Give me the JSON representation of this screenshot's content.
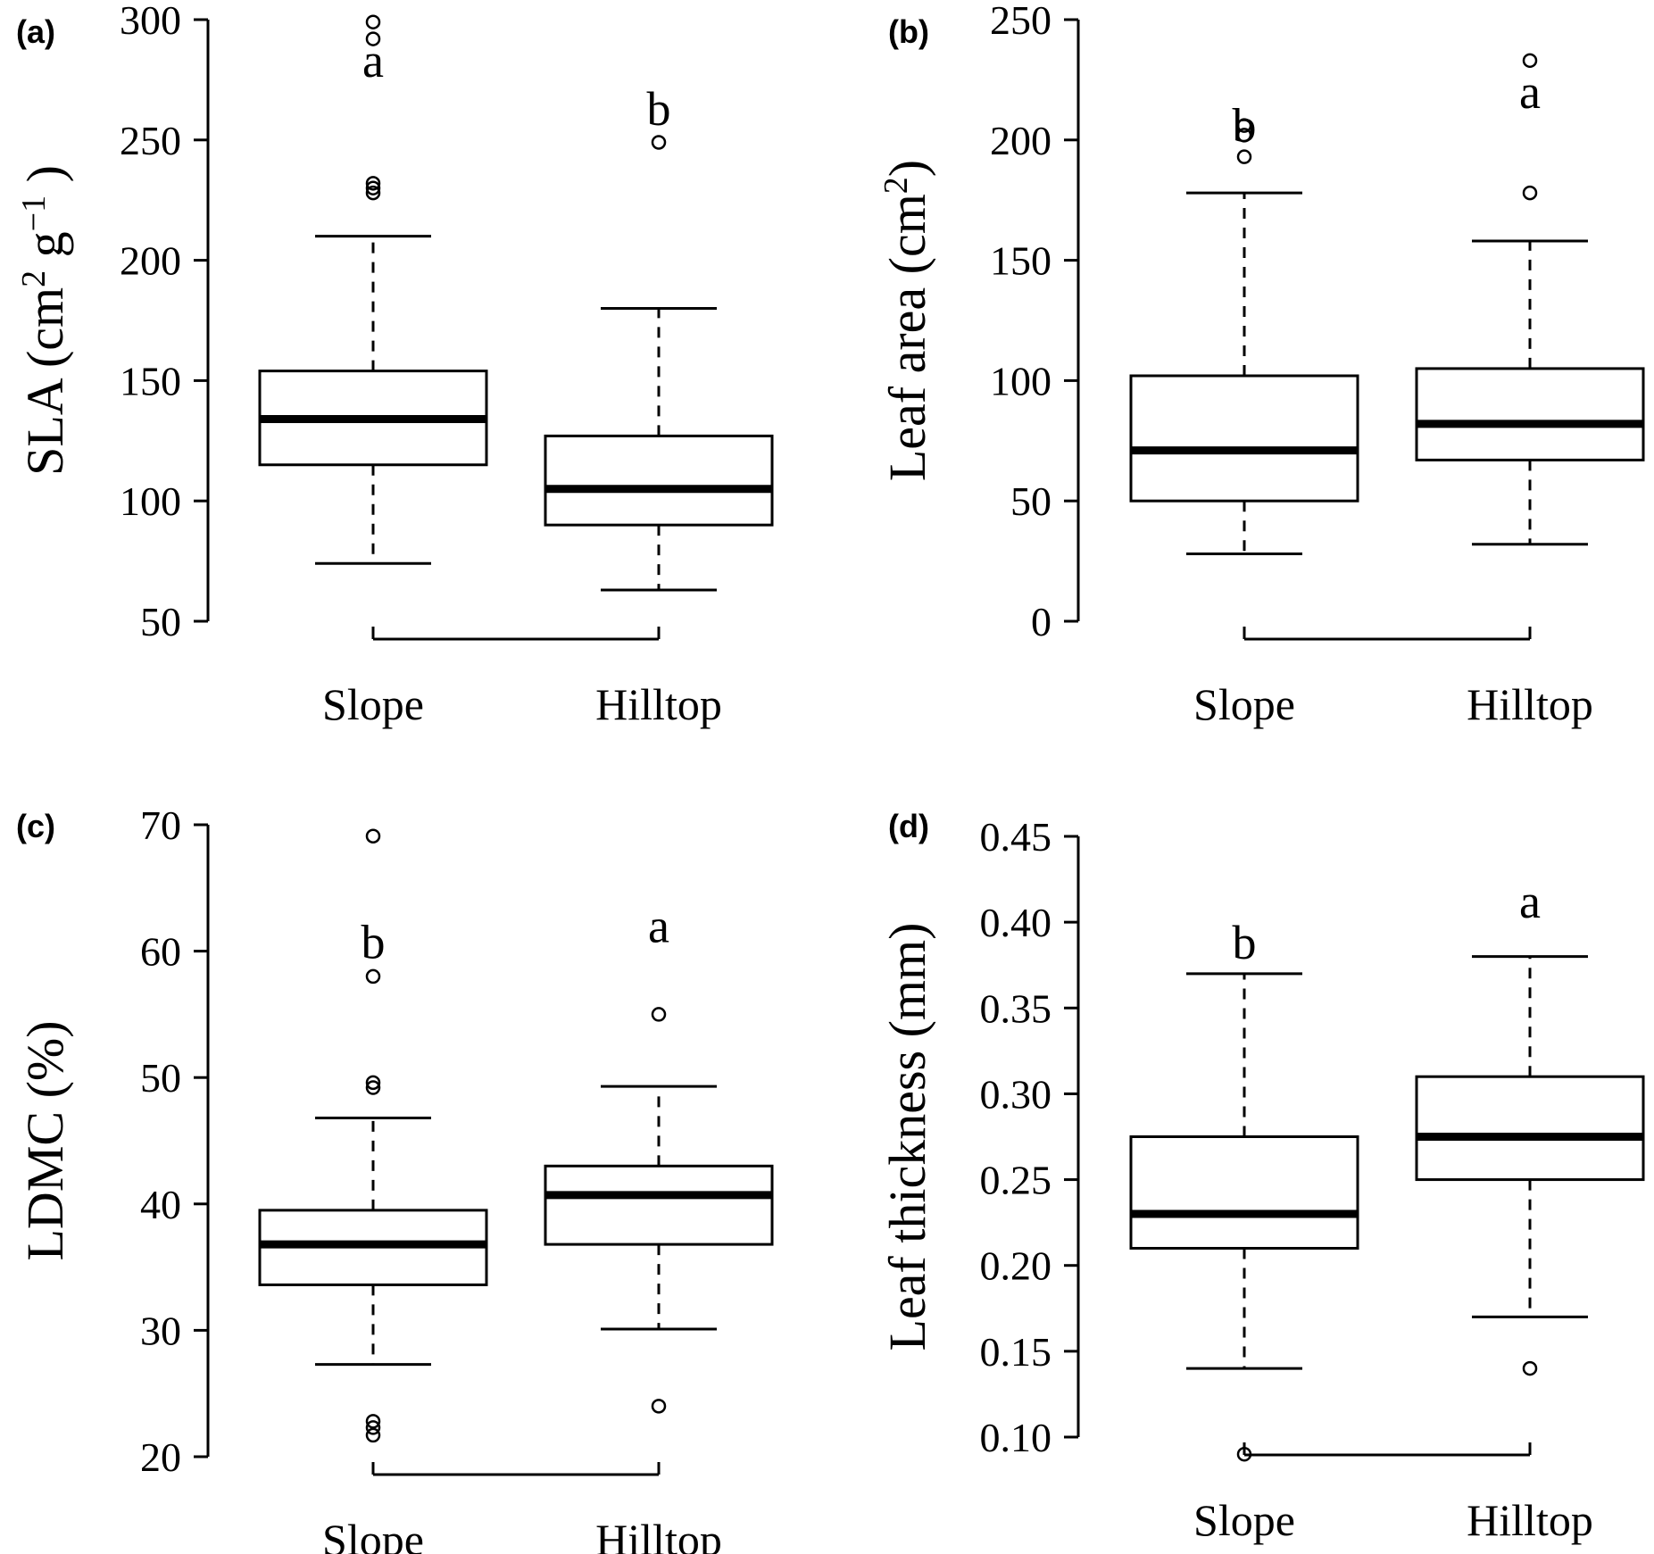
{
  "chart_data": [
    {
      "type": "boxplot",
      "panel_label": "(a)",
      "ylabel": {
        "main": "SLA (cm",
        "sup1": "2",
        "mid": " g",
        "sup2": "−1",
        "end": " )"
      },
      "ylim": [
        50,
        300
      ],
      "yticks": [
        50,
        100,
        150,
        200,
        250,
        300
      ],
      "yticklabels": [
        "50",
        "100",
        "150",
        "200",
        "250",
        "300"
      ],
      "categories": [
        "Slope",
        "Hilltop"
      ],
      "boxes": [
        {
          "name": "Slope",
          "whisker_low": 74,
          "q1": 115,
          "median": 134,
          "q3": 154,
          "whisker_high": 210,
          "outliers": [
            228,
            230,
            232,
            292,
            299
          ],
          "letter": "a",
          "letter_y": 283
        },
        {
          "name": "Hilltop",
          "whisker_low": 63,
          "q1": 90,
          "median": 105,
          "q3": 127,
          "whisker_high": 180,
          "outliers": [
            249
          ],
          "letter": "b",
          "letter_y": 263
        }
      ]
    },
    {
      "type": "boxplot",
      "panel_label": "(b)",
      "ylabel": {
        "main": "Leaf area (cm",
        "sup1": "2",
        "end": ")"
      },
      "ylim": [
        0,
        250
      ],
      "yticks": [
        0,
        50,
        100,
        150,
        200,
        250
      ],
      "yticklabels": [
        "0",
        "50",
        "100",
        "150",
        "200",
        "250"
      ],
      "categories": [
        "Slope",
        "Hilltop"
      ],
      "boxes": [
        {
          "name": "Slope",
          "whisker_low": 28,
          "q1": 50,
          "median": 71,
          "q3": 102,
          "whisker_high": 178,
          "outliers": [
            193,
            202,
            206
          ],
          "letter": "b",
          "letter_y": 206
        },
        {
          "name": "Hilltop",
          "whisker_low": 32,
          "q1": 67,
          "median": 82,
          "q3": 105,
          "whisker_high": 158,
          "outliers": [
            178,
            233
          ],
          "letter": "a",
          "letter_y": 220
        }
      ]
    },
    {
      "type": "boxplot",
      "panel_label": "(c)",
      "ylabel": {
        "main": "LDMC (%)"
      },
      "ylim": [
        20,
        70
      ],
      "yticks": [
        20,
        30,
        40,
        50,
        60,
        70
      ],
      "yticklabels": [
        "20",
        "30",
        "40",
        "50",
        "60",
        "70"
      ],
      "categories": [
        "Slope",
        "Hilltop"
      ],
      "boxes": [
        {
          "name": "Slope",
          "whisker_low": 27.3,
          "q1": 33.6,
          "median": 36.8,
          "q3": 39.5,
          "whisker_high": 46.8,
          "outliers": [
            21.7,
            22.3,
            22.8,
            49.2,
            49.6,
            58.0,
            69.1
          ],
          "letter": "b",
          "letter_y": 60.7
        },
        {
          "name": "Hilltop",
          "whisker_low": 30.1,
          "q1": 36.8,
          "median": 40.7,
          "q3": 43.0,
          "whisker_high": 49.3,
          "outliers": [
            24.0,
            55.0
          ],
          "letter": "a",
          "letter_y": 62.0
        }
      ]
    },
    {
      "type": "boxplot",
      "panel_label": "(d)",
      "ylabel": {
        "main": "Leaf thickness (mm)"
      },
      "ylim": [
        0.1,
        0.45
      ],
      "yticks": [
        0.1,
        0.15,
        0.2,
        0.25,
        0.3,
        0.35,
        0.4,
        0.45
      ],
      "yticklabels": [
        "0.10",
        "0.15",
        "0.20",
        "0.25",
        "0.30",
        "0.35",
        "0.40",
        "0.45"
      ],
      "categories": [
        "Slope",
        "Hilltop"
      ],
      "boxes": [
        {
          "name": "Slope",
          "whisker_low": 0.14,
          "q1": 0.21,
          "median": 0.23,
          "q3": 0.275,
          "whisker_high": 0.37,
          "outliers": [
            0.09
          ],
          "letter": "b",
          "letter_y": 0.388
        },
        {
          "name": "Hilltop",
          "whisker_low": 0.17,
          "q1": 0.25,
          "median": 0.275,
          "q3": 0.31,
          "whisker_high": 0.38,
          "outliers": [
            0.14
          ],
          "letter": "a",
          "letter_y": 0.412
        }
      ]
    }
  ]
}
